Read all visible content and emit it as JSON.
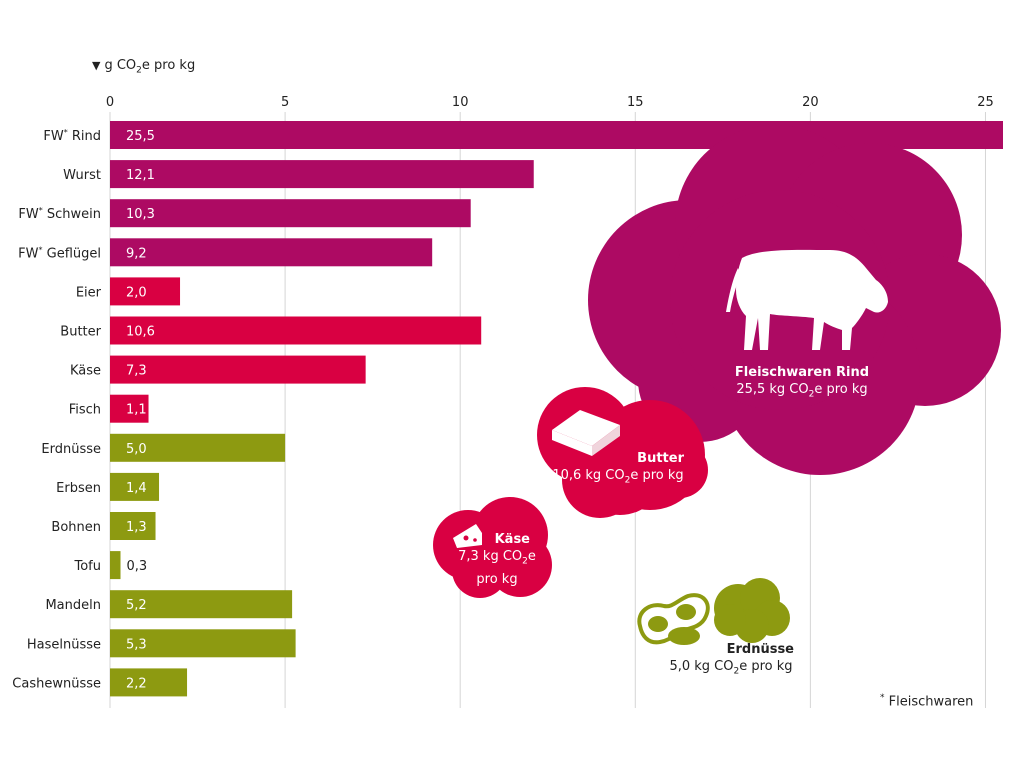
{
  "unit_label": "g CO",
  "unit_label_sub": "2",
  "unit_label_suffix": "e pro kg",
  "footnote_marker": "*",
  "footnote_text": "Fleischwaren",
  "colors": {
    "meat": "#ad0a63",
    "animal": "#d90042",
    "plant": "#8d9a11",
    "grid": "#d5d5d5",
    "text": "#222222"
  },
  "chart_data": {
    "type": "bar",
    "orientation": "horizontal",
    "xlim": [
      0,
      25.5
    ],
    "ticks": [
      0,
      5,
      10,
      15,
      20,
      25
    ],
    "grid": true,
    "categories": [
      {
        "label": "FW",
        "sup": "*",
        "suffix": " Rind",
        "value": 25.5,
        "value_label": "25,5",
        "group": "meat"
      },
      {
        "label": "Wurst",
        "sup": "",
        "suffix": "",
        "value": 12.1,
        "value_label": "12,1",
        "group": "meat"
      },
      {
        "label": "FW",
        "sup": "*",
        "suffix": " Schwein",
        "value": 10.3,
        "value_label": "10,3",
        "group": "meat"
      },
      {
        "label": "FW",
        "sup": "*",
        "suffix": " Geflügel",
        "value": 9.2,
        "value_label": "9,2",
        "group": "meat"
      },
      {
        "label": "Eier",
        "sup": "",
        "suffix": "",
        "value": 2.0,
        "value_label": "2,0",
        "group": "animal"
      },
      {
        "label": "Butter",
        "sup": "",
        "suffix": "",
        "value": 10.6,
        "value_label": "10,6",
        "group": "animal"
      },
      {
        "label": "Käse",
        "sup": "",
        "suffix": "",
        "value": 7.3,
        "value_label": "7,3",
        "group": "animal"
      },
      {
        "label": "Fisch",
        "sup": "",
        "suffix": "",
        "value": 1.1,
        "value_label": "1,1",
        "group": "animal"
      },
      {
        "label": "Erdnüsse",
        "sup": "",
        "suffix": "",
        "value": 5.0,
        "value_label": "5,0",
        "group": "plant"
      },
      {
        "label": "Erbsen",
        "sup": "",
        "suffix": "",
        "value": 1.4,
        "value_label": "1,4",
        "group": "plant"
      },
      {
        "label": "Bohnen",
        "sup": "",
        "suffix": "",
        "value": 1.3,
        "value_label": "1,3",
        "group": "plant"
      },
      {
        "label": "Tofu",
        "sup": "",
        "suffix": "",
        "value": 0.3,
        "value_label": "0,3",
        "group": "plant"
      },
      {
        "label": "Mandeln",
        "sup": "",
        "suffix": "",
        "value": 5.2,
        "value_label": "5,2",
        "group": "plant"
      },
      {
        "label": "Haselnüsse",
        "sup": "",
        "suffix": "",
        "value": 5.3,
        "value_label": "5,3",
        "group": "plant"
      },
      {
        "label": "Cashewnüsse",
        "sup": "",
        "suffix": "",
        "value": 2.2,
        "value_label": "2,2",
        "group": "plant"
      }
    ]
  },
  "callouts": {
    "rind": {
      "title": "Fleischwaren Rind",
      "value": "25,5 kg CO",
      "sub": "2",
      "suffix": "e pro kg",
      "icon": "cow-icon"
    },
    "butter": {
      "title": "Butter",
      "value": "10,6 kg CO",
      "sub": "2",
      "suffix": "e pro kg",
      "icon": "butter-icon"
    },
    "kaese": {
      "title": "Käse",
      "value": "7,3 kg CO",
      "sub": "2",
      "suffix": "e",
      "line3": "pro kg",
      "icon": "cheese-icon"
    },
    "erdnuesse": {
      "title": "Erdnüsse",
      "value": "5,0 kg CO",
      "sub": "2",
      "suffix": "e pro kg",
      "icon": "peanut-icon"
    }
  }
}
